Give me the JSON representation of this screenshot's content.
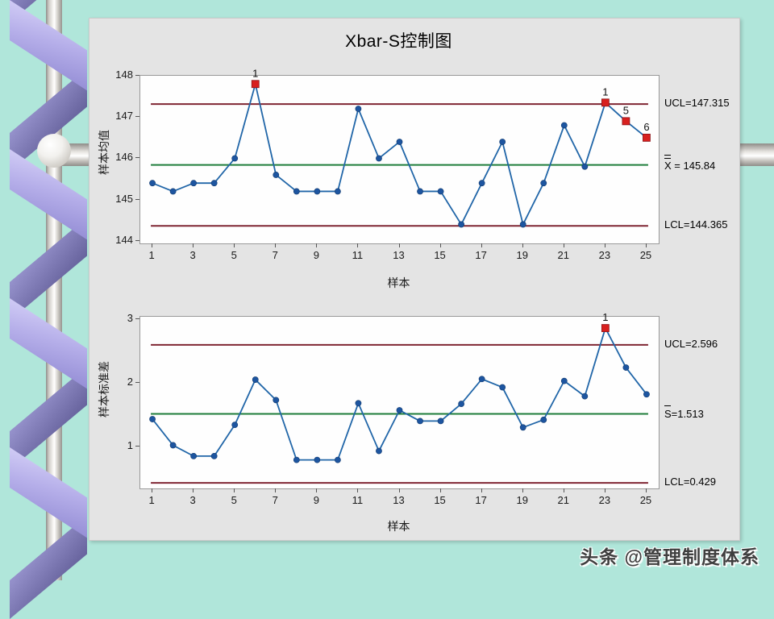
{
  "title": "Xbar-S控制图",
  "page": {
    "watermark": "头条 @管理制度体系"
  },
  "colors": {
    "background": "#b0e6da",
    "panel": "#e4e4e4",
    "limit_line": "#7f2633",
    "center_line": "#1f7d3b",
    "series_line": "#2166a8",
    "point": "#1d55a0",
    "point_stroke": "#123a6e",
    "out_point": "#d8201f",
    "out_point_stroke": "#8d1418",
    "ribbon": "#b5aee9",
    "ribbon_dark": "#67639d"
  },
  "chart_data": [
    {
      "type": "line",
      "name": "xbar_chart",
      "ylabel": "样本均值",
      "xlabel": "样本",
      "x": [
        1,
        2,
        3,
        4,
        5,
        6,
        7,
        8,
        9,
        10,
        11,
        12,
        13,
        14,
        15,
        16,
        17,
        18,
        19,
        20,
        21,
        22,
        23,
        24,
        25
      ],
      "values": [
        145.4,
        145.2,
        145.4,
        145.4,
        146.0,
        147.8,
        145.6,
        145.2,
        145.2,
        145.2,
        147.2,
        146.0,
        146.4,
        145.2,
        145.2,
        144.4,
        145.4,
        146.4,
        144.4,
        145.4,
        146.8,
        145.8,
        147.35,
        146.9,
        146.5
      ],
      "ucl": {
        "value": 147.315,
        "label": "UCL=147.315"
      },
      "center": {
        "value": 145.84,
        "symbol": "X",
        "bar_count": 2,
        "suffix": " = 145.84"
      },
      "lcl": {
        "value": 144.365,
        "label": "LCL=144.365"
      },
      "y_ticks": [
        144,
        145,
        146,
        147,
        148
      ],
      "x_ticks": [
        1,
        3,
        5,
        7,
        9,
        11,
        13,
        15,
        17,
        19,
        21,
        23,
        25
      ],
      "ylim": [
        143.94,
        148.0
      ],
      "xlim": [
        0.41,
        25.59
      ],
      "out_of_control": [
        {
          "sample": 6,
          "label": "1"
        },
        {
          "sample": 23,
          "label": "1"
        },
        {
          "sample": 24,
          "label": "5"
        },
        {
          "sample": 25,
          "label": "6"
        }
      ]
    },
    {
      "type": "line",
      "name": "s_chart",
      "ylabel": "样本标准差",
      "xlabel": "样本",
      "x": [
        1,
        2,
        3,
        4,
        5,
        6,
        7,
        8,
        9,
        10,
        11,
        12,
        13,
        14,
        15,
        16,
        17,
        18,
        19,
        20,
        21,
        22,
        23,
        24,
        25
      ],
      "values": [
        1.43,
        1.02,
        0.85,
        0.85,
        1.34,
        2.05,
        1.73,
        0.79,
        0.79,
        0.79,
        1.68,
        0.93,
        1.57,
        1.4,
        1.4,
        1.67,
        2.06,
        1.93,
        1.3,
        1.42,
        2.03,
        1.79,
        2.86,
        2.24,
        1.82
      ],
      "ucl": {
        "value": 2.596,
        "label": "UCL=2.596"
      },
      "center": {
        "value": 1.513,
        "symbol": "S",
        "bar_count": 1,
        "suffix": "=1.513"
      },
      "lcl": {
        "value": 0.429,
        "label": "LCL=0.429"
      },
      "y_ticks": [
        1,
        2,
        3
      ],
      "x_ticks": [
        1,
        3,
        5,
        7,
        9,
        11,
        13,
        15,
        17,
        19,
        21,
        23,
        25
      ],
      "ylim": [
        0.342,
        3.038
      ],
      "xlim": [
        0.41,
        25.59
      ],
      "out_of_control": [
        {
          "sample": 23,
          "label": "1"
        }
      ]
    }
  ]
}
